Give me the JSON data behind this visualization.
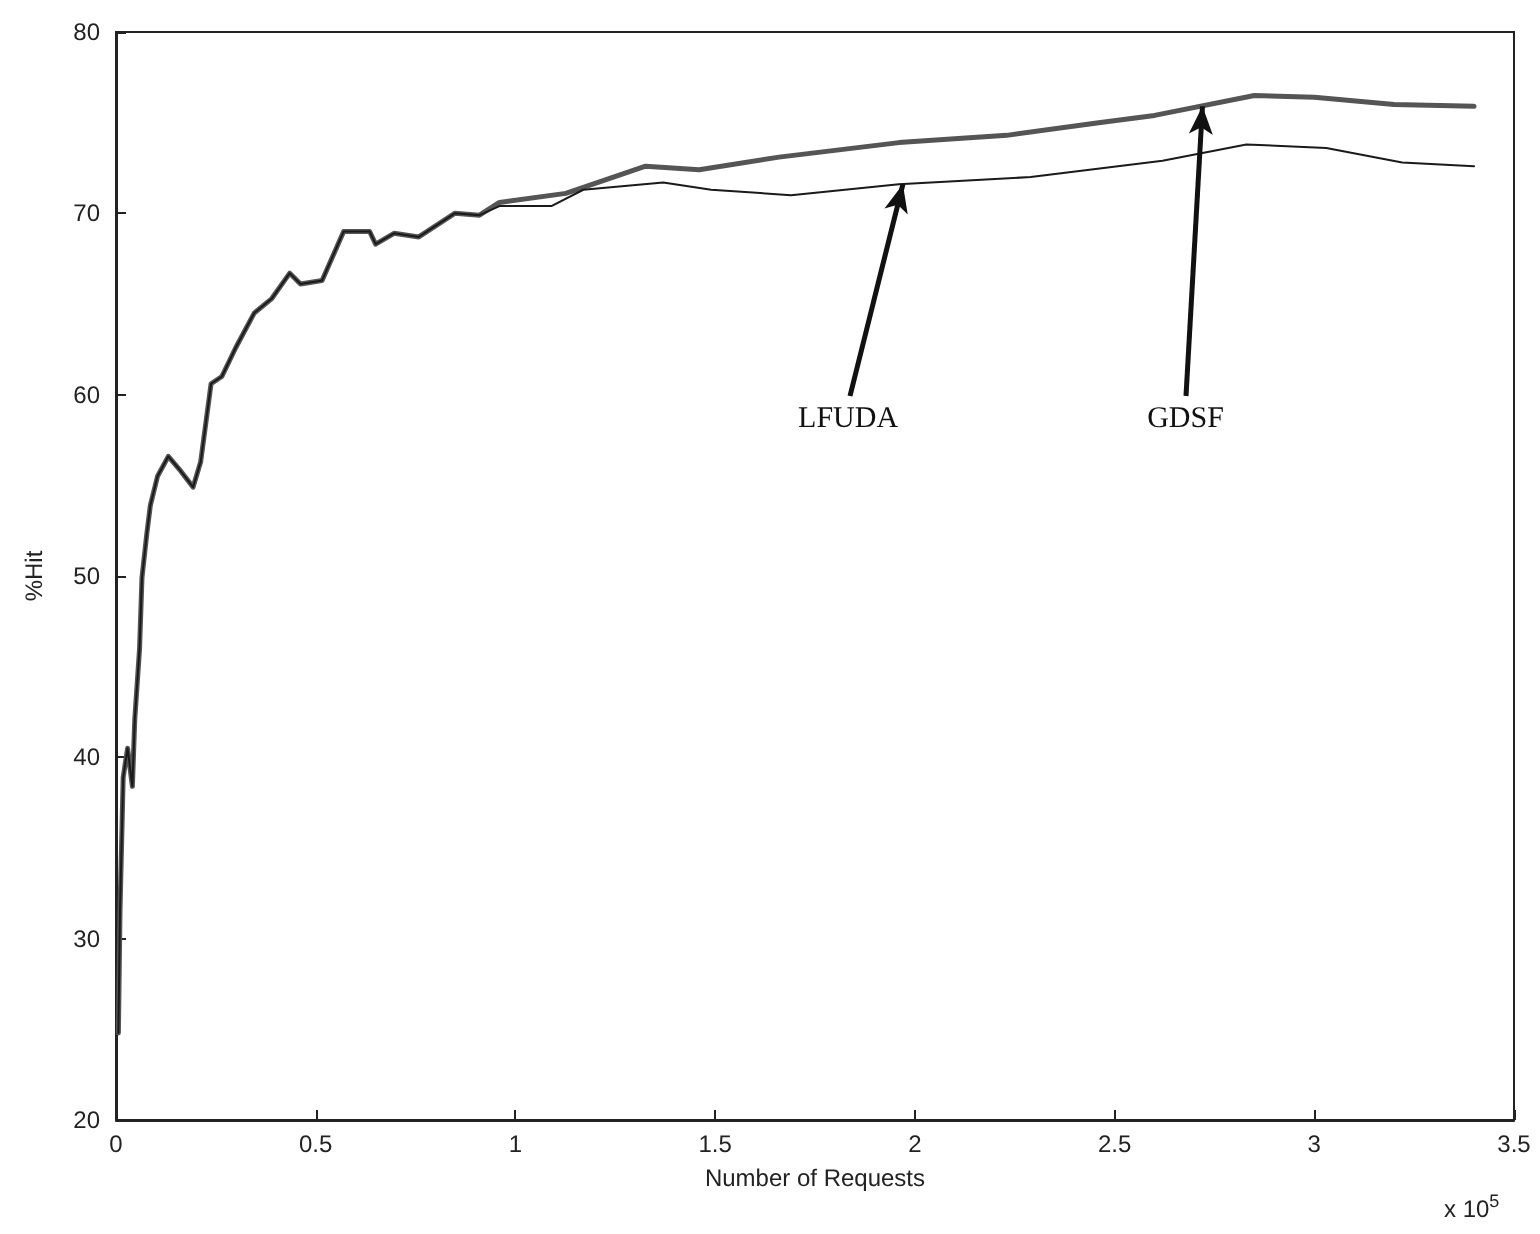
{
  "chart_data": {
    "type": "line",
    "xlabel": "Number of Requests",
    "ylabel": "%Hit",
    "xlim": [
      0,
      3.5
    ],
    "xticks": [
      0,
      0.5,
      1,
      1.5,
      2,
      2.5,
      3,
      3.5
    ],
    "ylim": [
      20,
      80
    ],
    "yticks": [
      20,
      30,
      40,
      50,
      60,
      70,
      80
    ],
    "grid": false,
    "marker": "none",
    "line_style": "solid",
    "annotations": [
      "x 10$^{5}$",
      {
        "text": "LFUDA",
        "x": 1.97,
        "y": 71.6
      },
      {
        "text": "GDSF",
        "x": 2.72,
        "y": 75.9
      }
    ],
    "series": [
      {
        "color": "#555555",
        "x": [
          0.006,
          0.01,
          0.018,
          0.029,
          0.041,
          0.047,
          0.059,
          0.065,
          0.077,
          0.086,
          0.104,
          0.131,
          0.158,
          0.193,
          0.212,
          0.238,
          0.265,
          0.3,
          0.346,
          0.39,
          0.435,
          0.462,
          0.516,
          0.57,
          0.635,
          0.65,
          0.696,
          0.758,
          0.848,
          0.91,
          0.96,
          1.126,
          1.326,
          1.46,
          1.66,
          1.96,
          2.23,
          2.46,
          2.6,
          2.85,
          3.0,
          3.2,
          3.4
        ],
        "values": [
          24.8,
          31.5,
          38.9,
          40.5,
          38.4,
          42.1,
          46,
          49.9,
          52.3,
          53.9,
          55.5,
          56.6,
          55.9,
          54.9,
          56.3,
          60.6,
          61,
          62.6,
          64.5,
          65.3,
          66.7,
          66.1,
          66.3,
          69,
          69,
          68.3,
          68.9,
          68.7,
          70,
          69.9,
          70.6,
          71.1,
          72.6,
          72.4,
          73.1,
          73.9,
          74.3,
          75,
          75.4,
          76.5,
          76.4,
          76,
          75.9
        ]
      },
      {
        "color": "#1a1a1a",
        "x": [
          0.006,
          0.01,
          0.018,
          0.029,
          0.041,
          0.047,
          0.059,
          0.065,
          0.077,
          0.086,
          0.104,
          0.131,
          0.158,
          0.193,
          0.212,
          0.238,
          0.265,
          0.3,
          0.346,
          0.39,
          0.435,
          0.462,
          0.516,
          0.57,
          0.635,
          0.65,
          0.696,
          0.758,
          0.848,
          0.91,
          0.96,
          1.09,
          1.17,
          1.37,
          1.49,
          1.69,
          1.96,
          2.29,
          2.62,
          2.83,
          3.03,
          3.22,
          3.4
        ],
        "values": [
          24.8,
          31.5,
          38.9,
          40.5,
          38.4,
          42.1,
          46,
          49.9,
          52.3,
          53.9,
          55.5,
          56.6,
          55.9,
          54.9,
          56.3,
          60.6,
          61,
          62.6,
          64.5,
          65.3,
          66.7,
          66.1,
          66.3,
          69,
          69,
          68.3,
          68.9,
          68.7,
          70,
          69.9,
          70.4,
          70.4,
          71.3,
          71.7,
          71.3,
          71,
          71.6,
          72,
          72.9,
          73.8,
          73.6,
          72.8,
          72.6
        ]
      }
    ]
  }
}
